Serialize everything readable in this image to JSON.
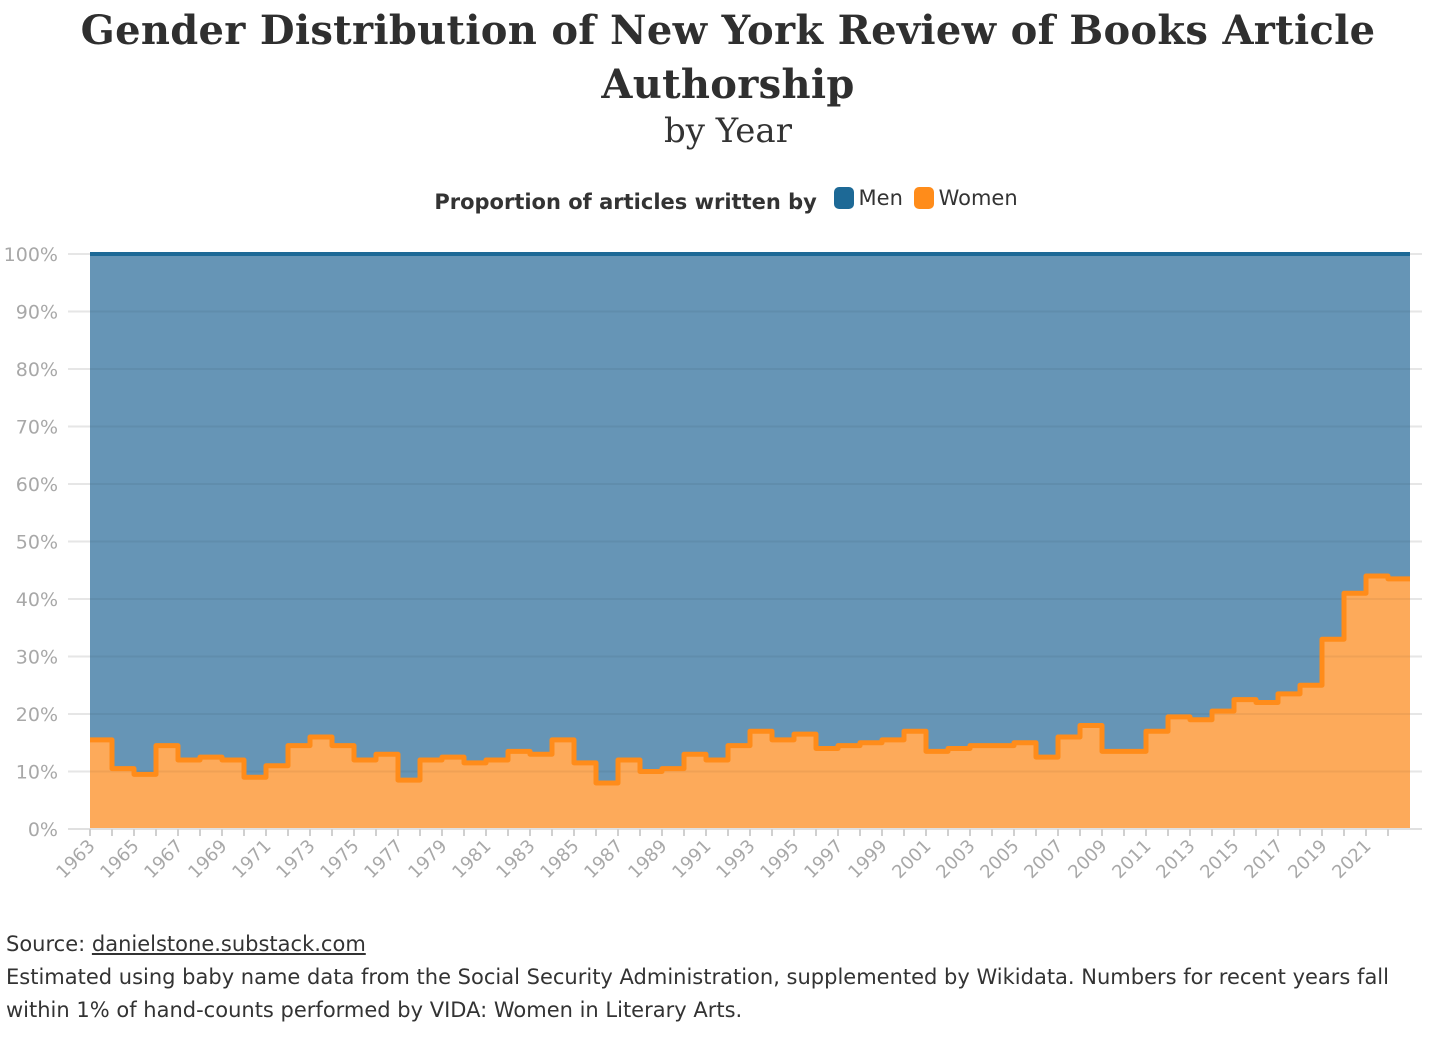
{
  "title": "Gender Distribution of New York Review of Books Article Authorship",
  "subtitle": "by Year",
  "legend": {
    "title": "Proportion of articles written by",
    "items": [
      {
        "label": "Men",
        "color": "#1d6996"
      },
      {
        "label": "Women",
        "color": "#ff8c1a"
      }
    ]
  },
  "footer": {
    "source_label": "Source: ",
    "source_link": "danielstone.substack.com",
    "note": "Estimated using baby name data from the Social Security Administration, supplemented by Wikidata. Numbers for recent years fall within 1% of hand-counts performed by VIDA: Women in Literary Arts."
  },
  "chart_data": {
    "type": "area",
    "stacked": "percent",
    "step": true,
    "x": [
      1963,
      1964,
      1965,
      1966,
      1967,
      1968,
      1969,
      1970,
      1971,
      1972,
      1973,
      1974,
      1975,
      1976,
      1977,
      1978,
      1979,
      1980,
      1981,
      1982,
      1983,
      1984,
      1985,
      1986,
      1987,
      1988,
      1989,
      1990,
      1991,
      1992,
      1993,
      1994,
      1995,
      1996,
      1997,
      1998,
      1999,
      2000,
      2001,
      2002,
      2003,
      2004,
      2005,
      2006,
      2007,
      2008,
      2009,
      2010,
      2011,
      2012,
      2013,
      2014,
      2015,
      2016,
      2017,
      2018,
      2019,
      2020,
      2021,
      2022
    ],
    "series": [
      {
        "name": "Women",
        "color": "#ff8c1a",
        "fill": "#fdaa5a",
        "values": [
          15.5,
          10.5,
          9.5,
          14.5,
          12,
          12.5,
          12,
          9,
          11,
          14.5,
          16,
          14.5,
          12,
          13,
          8.5,
          12,
          12.5,
          11.5,
          12,
          13.5,
          13,
          15.5,
          11.5,
          8,
          12,
          10,
          10.5,
          13,
          12,
          14.5,
          17,
          15.5,
          16.5,
          14,
          14.5,
          15,
          15.5,
          17,
          13.5,
          14,
          14.5,
          14.5,
          15,
          12.5,
          16,
          18,
          13.5,
          13.5,
          17,
          19.5,
          19,
          20.5,
          22.5,
          22,
          23.5,
          25,
          33,
          41,
          44,
          43.5
        ]
      },
      {
        "name": "Men",
        "color": "#1d6996",
        "fill": "#6695b6",
        "values": [
          84.5,
          89.5,
          90.5,
          85.5,
          88,
          87.5,
          88,
          91,
          89,
          85.5,
          84,
          85.5,
          88,
          87,
          91.5,
          88,
          87.5,
          88.5,
          88,
          86.5,
          87,
          84.5,
          88.5,
          92,
          88,
          90,
          89.5,
          87,
          88,
          85.5,
          83,
          84.5,
          83.5,
          86,
          85.5,
          85,
          84.5,
          83,
          86.5,
          86,
          85.5,
          85.5,
          85,
          87.5,
          84,
          82,
          86.5,
          86.5,
          83,
          80.5,
          81,
          79.5,
          77.5,
          78,
          76.5,
          75,
          67,
          59,
          56,
          56.5
        ]
      }
    ],
    "y_ticks": [
      "0%",
      "10%",
      "20%",
      "30%",
      "40%",
      "50%",
      "60%",
      "70%",
      "80%",
      "90%",
      "100%"
    ],
    "x_tick_labels": [
      "1963",
      "1965",
      "1967",
      "1969",
      "1971",
      "1973",
      "1975",
      "1977",
      "1979",
      "1981",
      "1983",
      "1985",
      "1987",
      "1989",
      "1991",
      "1993",
      "1995",
      "1997",
      "1999",
      "2001",
      "2003",
      "2005",
      "2007",
      "2009",
      "2011",
      "2013",
      "2015",
      "2017",
      "2019",
      "2021"
    ],
    "ylim": [
      0,
      100
    ],
    "grid": true
  }
}
